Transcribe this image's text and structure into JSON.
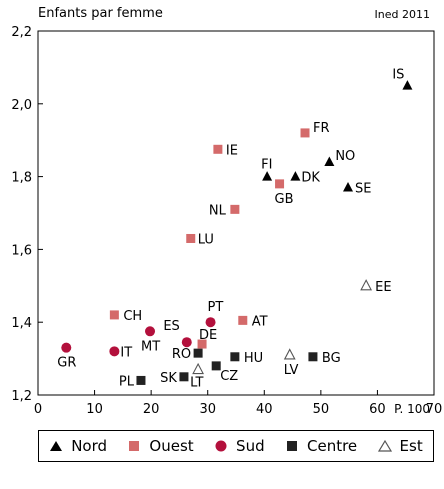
{
  "chart_data": {
    "type": "scatter",
    "title": "",
    "ylabel": "Enfants par femme",
    "xlabel": "P. 100",
    "source": "Ined 2011",
    "xlim": [
      0,
      70
    ],
    "ylim": [
      1.2,
      2.2
    ],
    "xticks": [
      0,
      10,
      20,
      30,
      40,
      50,
      60,
      70
    ],
    "yticks": [
      1.2,
      1.4,
      1.6,
      1.8,
      2.0,
      2.2
    ],
    "xtick_labels": [
      "0",
      "10",
      "20",
      "30",
      "40",
      "50",
      "60",
      "70"
    ],
    "ytick_labels": [
      "1,2",
      "1,4",
      "1,6",
      "1,8",
      "2,0",
      "2,2"
    ],
    "grid": false,
    "legend_position": "bottom",
    "series": [
      {
        "name": "Nord",
        "marker": "triangle",
        "color": "#000000",
        "points": [
          {
            "label": "IS",
            "x": 65.3,
            "y": 2.05
          },
          {
            "label": "NO",
            "x": 51.5,
            "y": 1.84
          },
          {
            "label": "FI",
            "x": 40.5,
            "y": 1.8
          },
          {
            "label": "DK",
            "x": 45.5,
            "y": 1.8
          },
          {
            "label": "SE",
            "x": 54.8,
            "y": 1.77
          }
        ]
      },
      {
        "name": "Ouest",
        "marker": "square",
        "color": "#d46a6a",
        "points": [
          {
            "label": "FR",
            "x": 47.2,
            "y": 1.92
          },
          {
            "label": "IE",
            "x": 31.8,
            "y": 1.875
          },
          {
            "label": "GB",
            "x": 42.7,
            "y": 1.78
          },
          {
            "label": "NL",
            "x": 34.8,
            "y": 1.71
          },
          {
            "label": "LU",
            "x": 27.0,
            "y": 1.63
          },
          {
            "label": "CH",
            "x": 13.5,
            "y": 1.42
          },
          {
            "label": "AT",
            "x": 36.2,
            "y": 1.405
          },
          {
            "label": "DE",
            "x": 29.0,
            "y": 1.34
          }
        ]
      },
      {
        "name": "Sud",
        "marker": "circle",
        "color": "#b3103c",
        "points": [
          {
            "label": "PT",
            "x": 30.5,
            "y": 1.4
          },
          {
            "label": "MT",
            "x": 19.8,
            "y": 1.375
          },
          {
            "label": "ES",
            "x": 26.3,
            "y": 1.345
          },
          {
            "label": "GR",
            "x": 5.0,
            "y": 1.33
          },
          {
            "label": "IT",
            "x": 13.5,
            "y": 1.32
          }
        ]
      },
      {
        "name": "Centre",
        "marker": "square",
        "color": "#222222",
        "points": [
          {
            "label": "RO",
            "x": 28.3,
            "y": 1.315
          },
          {
            "label": "HU",
            "x": 34.8,
            "y": 1.305
          },
          {
            "label": "BG",
            "x": 48.6,
            "y": 1.305
          },
          {
            "label": "CZ",
            "x": 31.5,
            "y": 1.28
          },
          {
            "label": "SK",
            "x": 25.8,
            "y": 1.25
          },
          {
            "label": "PL",
            "x": 18.2,
            "y": 1.24
          }
        ]
      },
      {
        "name": "Est",
        "marker": "triangle-open",
        "color": "#555555",
        "points": [
          {
            "label": "EE",
            "x": 58.0,
            "y": 1.5
          },
          {
            "label": "LV",
            "x": 44.5,
            "y": 1.31
          },
          {
            "label": "LT",
            "x": 28.3,
            "y": 1.27
          }
        ]
      }
    ]
  }
}
